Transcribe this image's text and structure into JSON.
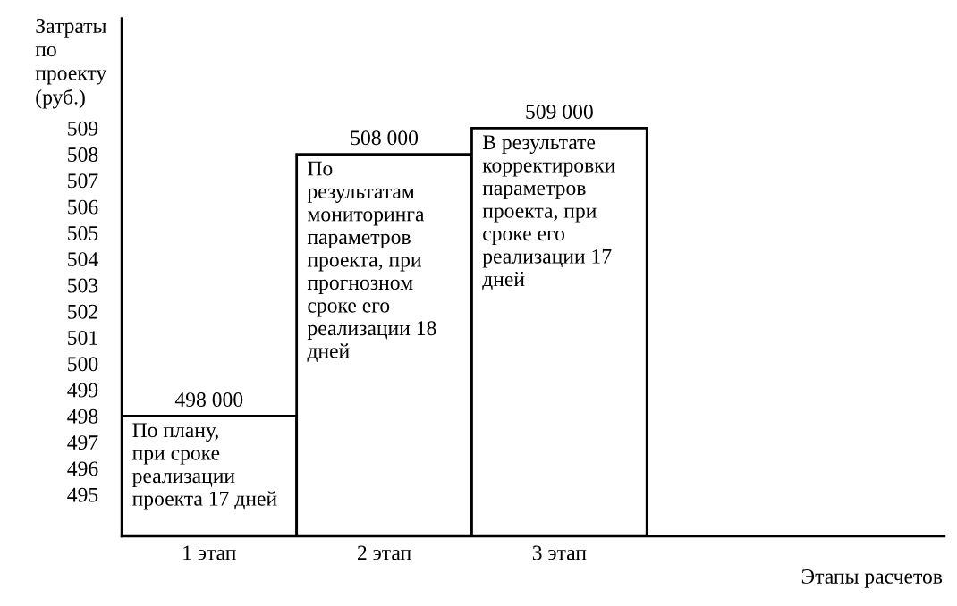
{
  "chart_data": {
    "type": "bar",
    "categories": [
      "1 этап",
      "2 этап",
      "3 этап"
    ],
    "values": [
      498,
      508,
      509
    ],
    "color": "#ffffff",
    "ylabel": "Затраты\nпо\nпроекту\n(руб.)",
    "ylim": [
      493.4,
      513.2
    ],
    "yticks": [
      495,
      496,
      497,
      498,
      499,
      500,
      501,
      502,
      503,
      504,
      505,
      506,
      507,
      508,
      509
    ],
    "annotations": [
      {
        "text": "498 000",
        "x": "1 этап",
        "y": 498
      },
      {
        "text": "508 000",
        "x": "2 этап",
        "y": 508
      },
      {
        "text": "509 000",
        "x": "3 этап",
        "y": 509
      },
      "По плану,\nпри сроке\nреализации\nпроекта 17 дней",
      "По\nрезультатам\nмониторинга\nпараметров\nпроекта, при\nпрогнозном\nсроке его\nреализации 18\nдней",
      "В результате\nкорректировки\nпараметров\nпроекта, при\nсроке его\nреализации 17\nдней",
      "Этапы расчетов"
    ],
    "grid": false,
    "legend": false
  }
}
